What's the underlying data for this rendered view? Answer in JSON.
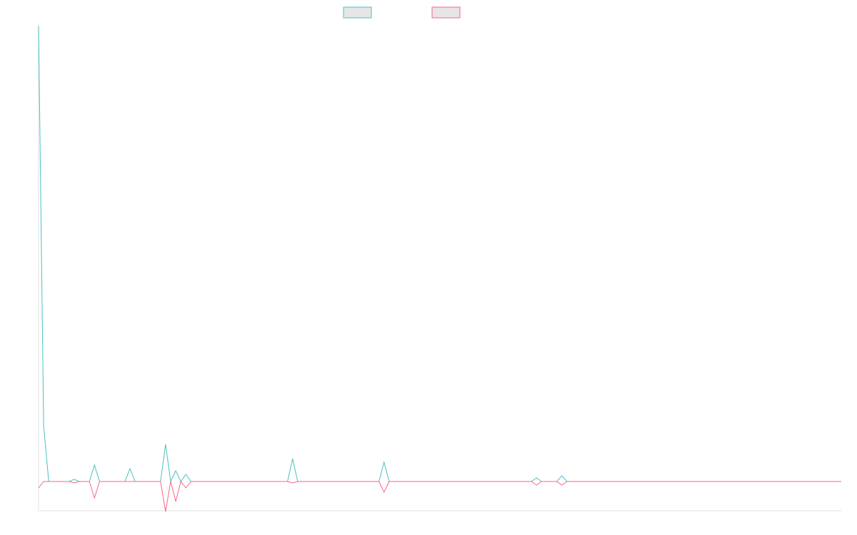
{
  "chart_data": {
    "type": "line",
    "x": [
      0,
      1,
      2,
      3,
      4,
      5,
      6,
      7,
      8,
      9,
      10,
      11,
      12,
      13,
      14,
      15,
      16,
      17,
      18,
      19,
      20,
      21,
      22,
      23,
      24,
      25,
      26,
      27,
      28,
      29,
      30,
      31,
      32,
      33,
      34,
      35,
      36,
      37,
      38,
      39,
      40,
      41,
      42,
      43,
      44,
      45,
      46,
      47,
      48,
      49,
      50,
      51,
      52,
      53,
      54,
      55,
      56,
      57,
      58,
      59,
      60,
      61,
      62,
      63,
      64,
      65,
      66,
      67,
      68,
      69,
      70,
      71,
      72,
      73,
      74,
      75,
      76,
      77,
      78,
      79,
      80,
      81,
      82,
      83,
      84,
      85,
      86,
      87,
      88,
      89,
      90,
      91,
      92,
      93,
      94,
      95,
      96,
      97,
      98,
      99,
      100,
      101,
      102,
      103,
      104,
      105,
      106,
      107,
      108,
      109,
      110,
      111,
      112,
      113,
      114,
      115,
      116,
      117,
      118,
      119,
      120,
      121,
      122,
      123,
      124,
      125,
      126,
      127,
      128,
      129,
      130,
      131,
      132,
      133,
      134,
      135,
      136,
      137,
      138,
      139,
      140,
      141,
      142,
      143,
      144,
      145,
      146,
      147,
      148,
      149,
      150,
      151,
      152,
      153,
      154,
      155,
      156,
      157,
      158
    ],
    "xlim": [
      0,
      158
    ],
    "ylim": [
      -41,
      639
    ],
    "series": [
      {
        "color": "#4bc0c0",
        "values": [
          639,
          78,
          0,
          0,
          0,
          0,
          0,
          3,
          0,
          0,
          0,
          23,
          0,
          0,
          0,
          0,
          0,
          0,
          18,
          0,
          0,
          0,
          0,
          0,
          0,
          52,
          0,
          15,
          0,
          10,
          0,
          0,
          0,
          0,
          0,
          0,
          0,
          0,
          0,
          0,
          0,
          0,
          0,
          0,
          0,
          0,
          0,
          0,
          0,
          0,
          32,
          0,
          0,
          0,
          0,
          0,
          0,
          0,
          0,
          0,
          0,
          0,
          0,
          0,
          0,
          0,
          0,
          0,
          27,
          0,
          0,
          0,
          0,
          0,
          0,
          0,
          0,
          0,
          0,
          0,
          0,
          0,
          0,
          0,
          0,
          0,
          0,
          0,
          0,
          0,
          0,
          0,
          0,
          0,
          0,
          0,
          0,
          0,
          5,
          0,
          0,
          0,
          0,
          8,
          0,
          0,
          0,
          0,
          0,
          0,
          0,
          0,
          0,
          0,
          0,
          0,
          0,
          0,
          0,
          0,
          0,
          0,
          0,
          0,
          0,
          0,
          0,
          0,
          0,
          0,
          0,
          0,
          0,
          0,
          0,
          0,
          0,
          0,
          0,
          0,
          0,
          0,
          0,
          0,
          0,
          0,
          0,
          0,
          0,
          0,
          0,
          0,
          0,
          0,
          0,
          0,
          0,
          0,
          0
        ]
      },
      {
        "color": "#ff6384",
        "values": [
          -9,
          0,
          0,
          0,
          0,
          0,
          0,
          -2,
          0,
          0,
          0,
          -23,
          0,
          0,
          0,
          0,
          0,
          0,
          0,
          0,
          0,
          0,
          0,
          0,
          0,
          -42,
          0,
          -28,
          0,
          -9,
          0,
          0,
          0,
          0,
          0,
          0,
          0,
          0,
          0,
          0,
          0,
          0,
          0,
          0,
          0,
          0,
          0,
          0,
          0,
          0,
          -2,
          0,
          0,
          0,
          0,
          0,
          0,
          0,
          0,
          0,
          0,
          0,
          0,
          0,
          0,
          0,
          0,
          0,
          -15,
          0,
          0,
          0,
          0,
          0,
          0,
          0,
          0,
          0,
          0,
          0,
          0,
          0,
          0,
          0,
          0,
          0,
          0,
          0,
          0,
          0,
          0,
          0,
          0,
          0,
          0,
          0,
          0,
          0,
          -5,
          0,
          0,
          0,
          0,
          -5,
          0,
          0,
          0,
          0,
          0,
          0,
          0,
          0,
          0,
          0,
          0,
          0,
          0,
          0,
          0,
          0,
          0,
          0,
          0,
          0,
          0,
          0,
          0,
          0,
          0,
          0,
          0,
          0,
          0,
          0,
          0,
          0,
          0,
          0,
          0,
          0,
          0,
          0,
          0,
          0,
          0,
          0,
          0,
          0,
          0,
          0,
          0,
          0,
          0,
          0,
          0,
          0,
          0,
          0,
          0
        ]
      }
    ]
  }
}
